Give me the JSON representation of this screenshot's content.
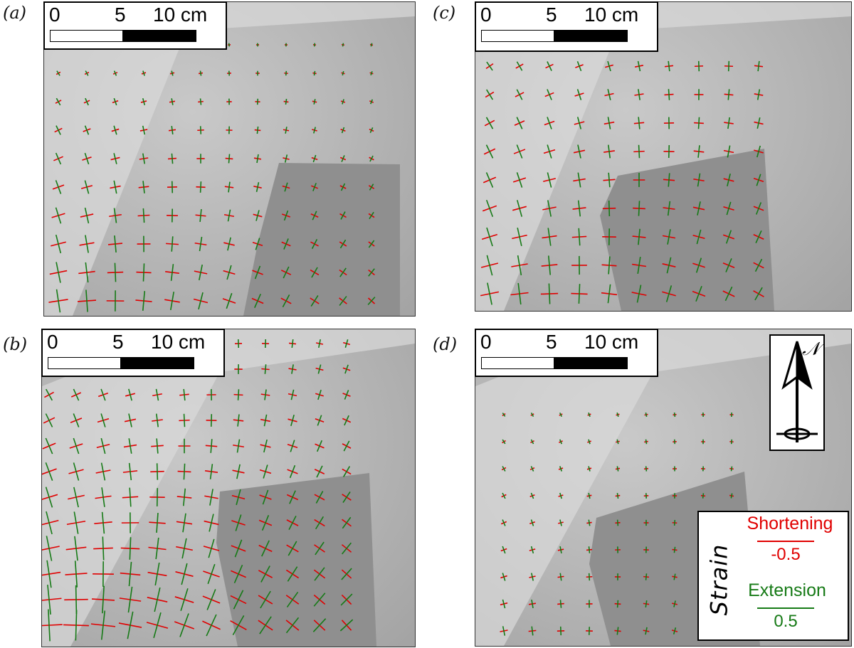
{
  "panels": {
    "a": {
      "label": "(a)",
      "scale": {
        "t0": "0",
        "t5": "5",
        "t10": "10 cm"
      }
    },
    "b": {
      "label": "(b)",
      "scale": {
        "t0": "0",
        "t5": "5",
        "t10": "10 cm"
      }
    },
    "c": {
      "label": "(c)",
      "scale": {
        "t0": "0",
        "t5": "5",
        "t10": "10 cm"
      }
    },
    "d": {
      "label": "(d)",
      "scale": {
        "t0": "0",
        "t5": "5",
        "t10": "10 cm"
      }
    }
  },
  "north_label": "𝒩",
  "legend": {
    "title": "Strain",
    "shortening": {
      "label": "Shortening",
      "value": "-0.5",
      "color": "#e00000"
    },
    "extension": {
      "label": "Extension",
      "value": "0.5",
      "color": "#167a16"
    }
  },
  "colors": {
    "shortening": "#e00000",
    "extension": "#167a16"
  }
}
